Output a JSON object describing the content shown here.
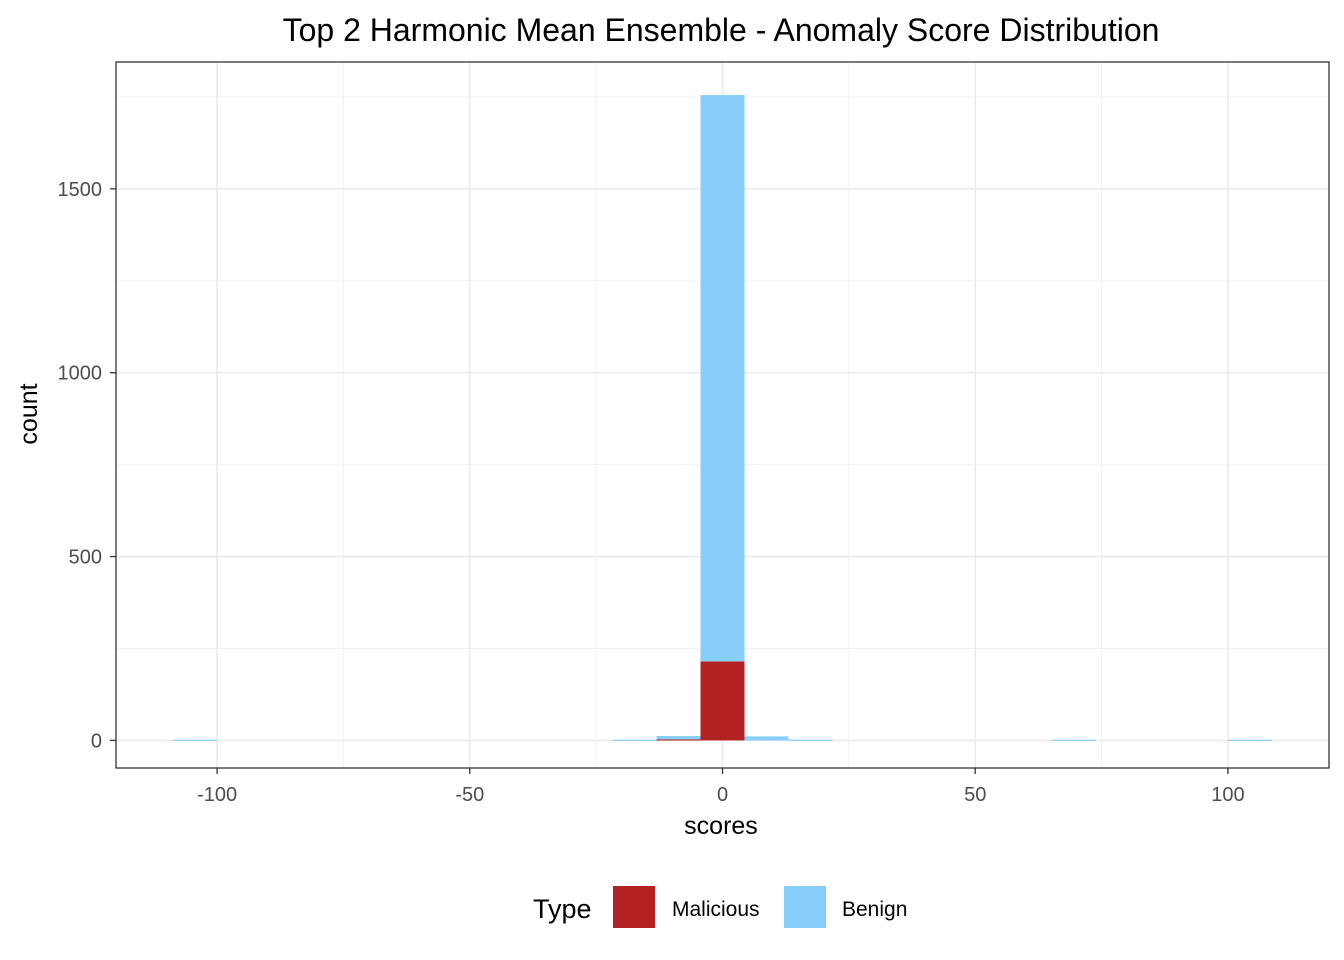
{
  "chart_data": {
    "type": "bar",
    "subtype": "stacked-histogram",
    "title": "Top 2 Harmonic Mean Ensemble - Anomaly Score Distribution",
    "xlabel": "scores",
    "ylabel": "count",
    "xlim": [
      -120,
      120
    ],
    "ylim": [
      -75,
      1845
    ],
    "x_ticks": [
      -100,
      -50,
      0,
      50,
      100
    ],
    "x_tick_labels": [
      "-100",
      "-50",
      "0",
      "50",
      "100"
    ],
    "y_ticks": [
      0,
      500,
      1000,
      1500
    ],
    "y_tick_labels": [
      "0",
      "500",
      "1000",
      "1500"
    ],
    "bin_width": 8.7,
    "grid": true,
    "legend": {
      "title": "Type",
      "position": "bottom"
    },
    "series": [
      {
        "name": "Malicious",
        "color": "#b22222",
        "bins": [
          {
            "x": -8.7,
            "count": 3
          },
          {
            "x": 0,
            "count": 215
          }
        ]
      },
      {
        "name": "Benign",
        "color": "#87cefa",
        "bins": [
          {
            "x": -104.4,
            "count": 2
          },
          {
            "x": -17.4,
            "count": 2
          },
          {
            "x": -8.7,
            "count": 9
          },
          {
            "x": 0,
            "count": 1540
          },
          {
            "x": 8.7,
            "count": 11
          },
          {
            "x": 17.4,
            "count": 2
          },
          {
            "x": 69.6,
            "count": 2
          },
          {
            "x": 104.4,
            "count": 2
          }
        ]
      }
    ]
  }
}
